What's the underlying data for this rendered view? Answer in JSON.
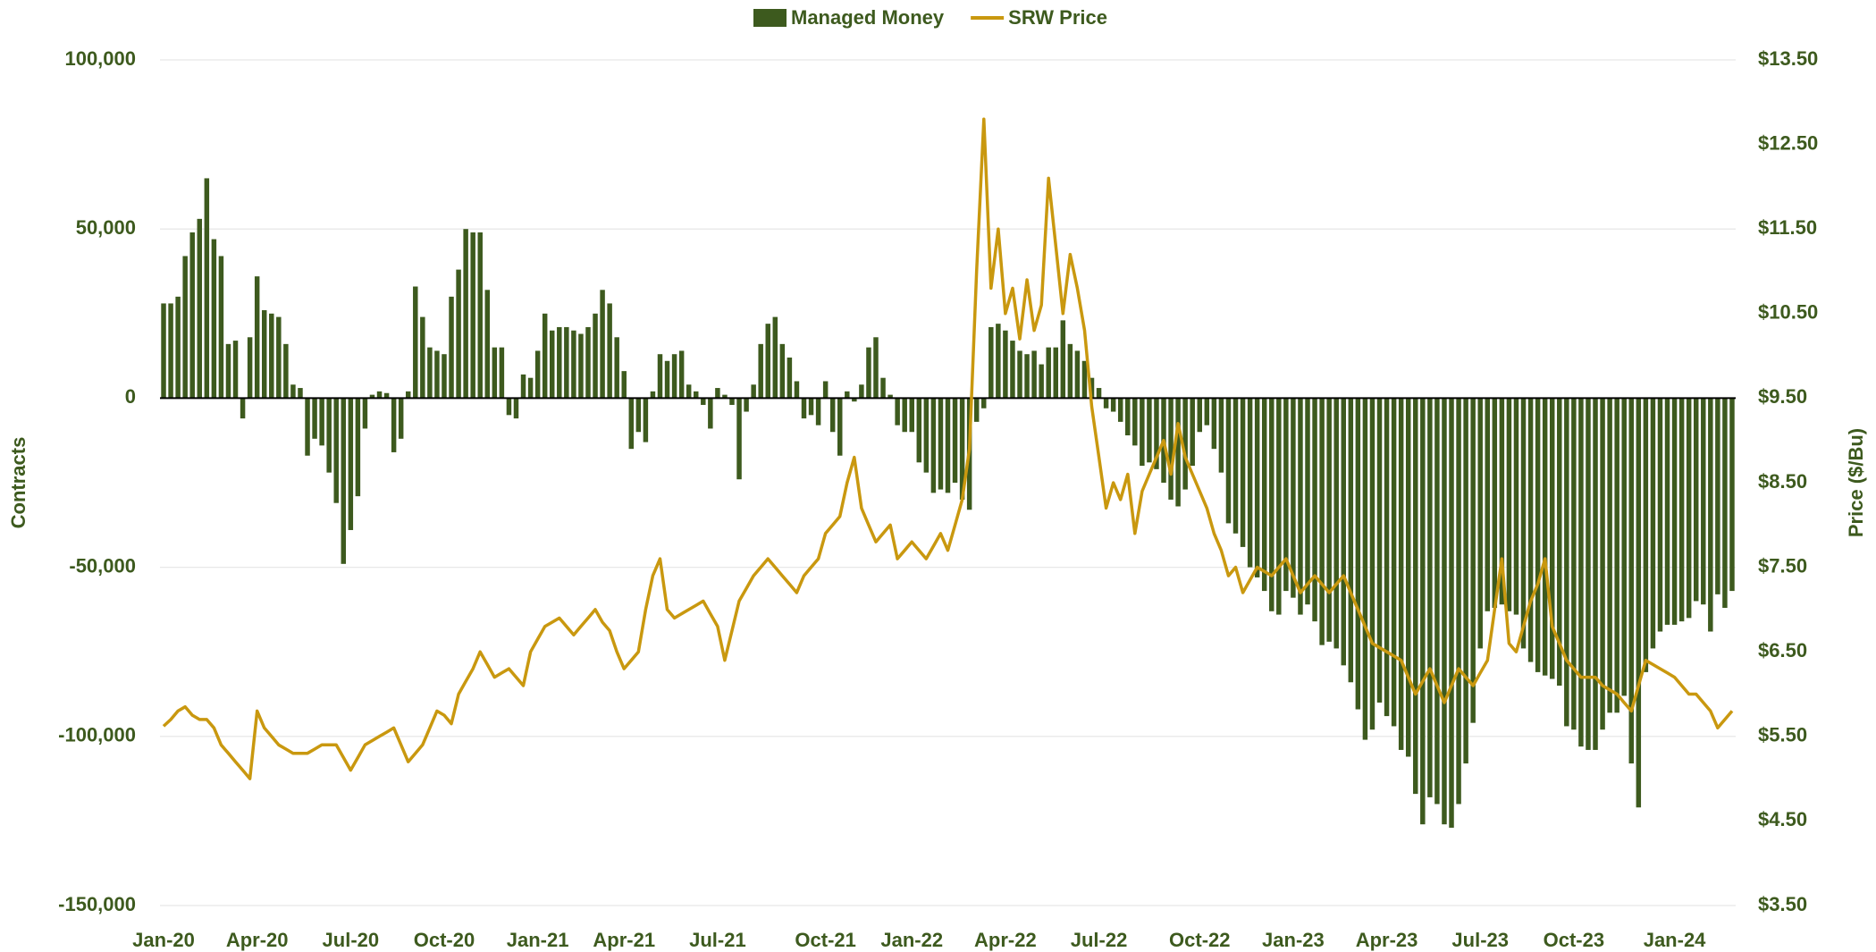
{
  "chart_data": {
    "type": "bar",
    "legend": "top",
    "grid": true,
    "y_label": "Contracts",
    "y2_label": "Price ($/Bu)",
    "categories": [
      "Jan-20",
      null,
      null,
      null,
      null,
      null,
      null,
      null,
      null,
      null,
      null,
      null,
      null,
      "Apr-20",
      null,
      null,
      null,
      null,
      null,
      null,
      null,
      null,
      null,
      null,
      null,
      null,
      "Jul-20",
      null,
      null,
      null,
      null,
      null,
      null,
      null,
      null,
      null,
      null,
      null,
      null,
      "Oct-20",
      null,
      null,
      null,
      null,
      null,
      null,
      null,
      null,
      null,
      null,
      null,
      null,
      "Jan-21",
      null,
      null,
      null,
      null,
      null,
      null,
      null,
      null,
      null,
      null,
      null,
      "Apr-21",
      null,
      null,
      null,
      null,
      null,
      null,
      null,
      null,
      null,
      null,
      null,
      null,
      "Jul-21",
      null,
      null,
      null,
      null,
      null,
      null,
      null,
      null,
      null,
      null,
      null,
      null,
      null,
      null,
      "Oct-21",
      null,
      null,
      null,
      null,
      null,
      null,
      null,
      null,
      null,
      null,
      null,
      "Jan-22",
      null,
      null,
      null,
      null,
      null,
      null,
      null,
      null,
      null,
      null,
      null,
      null,
      "Apr-22",
      null,
      null,
      null,
      null,
      null,
      null,
      null,
      null,
      null,
      null,
      null,
      null,
      "Jul-22",
      null,
      null,
      null,
      null,
      null,
      null,
      null,
      null,
      null,
      null,
      null,
      null,
      null,
      "Oct-22",
      null,
      null,
      null,
      null,
      null,
      null,
      null,
      null,
      null,
      null,
      null,
      null,
      "Jan-23",
      null,
      null,
      null,
      null,
      null,
      null,
      null,
      null,
      null,
      null,
      null,
      null,
      "Apr-23",
      null,
      null,
      null,
      null,
      null,
      null,
      null,
      null,
      null,
      null,
      null,
      null,
      "Jul-23",
      null,
      null,
      null,
      null,
      null,
      null,
      null,
      null,
      null,
      null,
      null,
      null,
      "Oct-23",
      null,
      null,
      null,
      null,
      null,
      null,
      null,
      null,
      null,
      null,
      null,
      null,
      null,
      "Jan-24",
      null,
      null,
      null,
      null,
      null,
      null,
      null,
      null
    ],
    "series": [
      {
        "name": "Managed Money",
        "type": "bar",
        "color": "#3d5a1e",
        "values": [
          28000,
          28000,
          30000,
          42000,
          49000,
          53000,
          65000,
          47000,
          42000,
          16000,
          17000,
          -6000,
          18000,
          36000,
          26000,
          25000,
          24000,
          16000,
          4000,
          3000,
          -17000,
          -12000,
          -14000,
          -22000,
          -31000,
          -49000,
          -39000,
          -29000,
          -9000,
          1000,
          2000,
          1500,
          -16000,
          -12000,
          2000,
          33000,
          24000,
          15000,
          14000,
          13000,
          30000,
          38000,
          50000,
          49000,
          49000,
          32000,
          15000,
          15000,
          -5000,
          -6000,
          7000,
          6000,
          14000,
          25000,
          20000,
          21000,
          21000,
          20000,
          19000,
          21000,
          25000,
          32000,
          28000,
          18000,
          8000,
          -15000,
          -10000,
          -13000,
          2000,
          13000,
          11000,
          13000,
          14000,
          4000,
          2000,
          -2000,
          -9000,
          3000,
          1000,
          -2000,
          -24000,
          -4000,
          4000,
          16000,
          22000,
          24000,
          16000,
          12000,
          5000,
          -6000,
          -5000,
          -8000,
          5000,
          -10000,
          -17000,
          2000,
          -1000,
          4000,
          15000,
          18000,
          6000,
          1000,
          -8000,
          -10000,
          -10000,
          -19000,
          -22000,
          -28000,
          -27000,
          -28000,
          -25000,
          -30000,
          -33000,
          -7000,
          -3000,
          21000,
          22000,
          20000,
          17000,
          14000,
          13000,
          14000,
          10000,
          15000,
          15000,
          23000,
          16000,
          14000,
          11000,
          6000,
          3000,
          -3000,
          -4000,
          -7000,
          -11000,
          -14000,
          -20000,
          -19000,
          -21000,
          -25000,
          -30000,
          -32000,
          -27000,
          -20000,
          -10000,
          -8000,
          -15000,
          -22000,
          -37000,
          -40000,
          -44000,
          -50000,
          -53000,
          -57000,
          -63000,
          -64000,
          -57000,
          -59000,
          -64000,
          -61000,
          -66000,
          -73000,
          -72000,
          -74000,
          -79000,
          -84000,
          -92000,
          -101000,
          -98000,
          -90000,
          -94000,
          -97000,
          -104000,
          -106000,
          -117000,
          -126000,
          -118000,
          -120000,
          -126000,
          -127000,
          -120000,
          -108000,
          -96000,
          -74000,
          -63000,
          -62000,
          -61000,
          -63000,
          -64000,
          -74000,
          -78000,
          -81000,
          -82000,
          -83000,
          -85000,
          -97000,
          -98000,
          -103000,
          -104000,
          -104000,
          -98000,
          -93000,
          -93000,
          -88000,
          -108000,
          -121000,
          -81000,
          -74000,
          -69000,
          -67000,
          -67000,
          -66000,
          -65000,
          -60000,
          -61000,
          -69000,
          -58000,
          -62000,
          -57000
        ]
      },
      {
        "name": "SRW Price",
        "type": "line",
        "axis": "y2",
        "color": "#c9980f",
        "values": [
          5.62,
          5.7,
          5.8,
          5.85,
          5.75,
          5.7,
          5.7,
          5.6,
          5.4,
          5.3,
          5.2,
          5.1,
          5.0,
          5.8,
          5.6,
          5.5,
          5.4,
          5.35,
          5.3,
          5.3,
          5.3,
          5.35,
          5.4,
          5.4,
          5.4,
          5.25,
          5.1,
          5.25,
          5.4,
          5.45,
          5.5,
          5.55,
          5.6,
          5.4,
          5.2,
          5.3,
          5.4,
          5.6,
          5.8,
          5.75,
          5.65,
          6.0,
          6.15,
          6.3,
          6.5,
          6.35,
          6.2,
          6.25,
          6.3,
          6.2,
          6.1,
          6.5,
          6.65,
          6.8,
          6.85,
          6.9,
          6.8,
          6.7,
          6.8,
          6.9,
          7.0,
          6.85,
          6.75,
          6.5,
          6.3,
          6.4,
          6.5,
          7.0,
          7.4,
          7.6,
          7.0,
          6.9,
          6.95,
          7.0,
          7.05,
          7.1,
          6.95,
          6.8,
          6.4,
          6.75,
          7.1,
          7.25,
          7.4,
          7.5,
          7.6,
          7.5,
          7.4,
          7.3,
          7.2,
          7.4,
          7.5,
          7.6,
          7.9,
          8.0,
          8.1,
          8.5,
          8.8,
          8.2,
          8.0,
          7.8,
          7.9,
          8.0,
          7.6,
          7.7,
          7.8,
          7.7,
          7.6,
          7.75,
          7.9,
          7.7,
          8.0,
          8.3,
          8.9,
          11.0,
          12.8,
          10.8,
          11.5,
          10.5,
          10.8,
          10.2,
          10.9,
          10.3,
          10.6,
          12.1,
          11.3,
          10.5,
          11.2,
          10.8,
          10.3,
          9.4,
          8.8,
          8.2,
          8.5,
          8.3,
          8.6,
          7.9,
          8.4,
          8.6,
          8.8,
          9.0,
          8.6,
          9.2,
          8.8,
          8.6,
          8.4,
          8.2,
          7.9,
          7.7,
          7.4,
          7.5,
          7.2,
          7.35,
          7.5,
          7.45,
          7.4,
          7.5,
          7.6,
          7.4,
          7.2,
          7.3,
          7.4,
          7.3,
          7.2,
          7.3,
          7.4,
          7.2,
          7.0,
          6.8,
          6.6,
          6.55,
          6.5,
          6.45,
          6.4,
          6.2,
          6.0,
          6.15,
          6.3,
          6.1,
          5.9,
          6.1,
          6.3,
          6.2,
          6.1,
          6.25,
          6.4,
          7.0,
          7.6,
          6.6,
          6.5,
          6.8,
          7.1,
          7.3,
          7.6,
          6.8,
          6.6,
          6.4,
          6.3,
          6.2,
          6.2,
          6.2,
          6.1,
          6.05,
          6.0,
          5.9,
          5.8,
          6.1,
          6.4,
          6.35,
          6.3,
          6.25,
          6.2,
          6.1,
          6.0,
          6.0,
          5.9,
          5.8,
          5.6,
          5.7,
          5.8
        ]
      }
    ],
    "ylim": [
      -150000,
      100000
    ],
    "yticks": [
      {
        "value": -150000,
        "label": "-150,000"
      },
      {
        "value": -100000,
        "label": "-100,000"
      },
      {
        "value": -50000,
        "label": "-50,000"
      },
      0,
      {
        "value": 50000,
        "label": "50,000"
      },
      {
        "value": 100000,
        "label": "100,000"
      }
    ],
    "y2lim": [
      3.5,
      13.5
    ],
    "y2ticks": [
      {
        "value": 3.5,
        "label": "$3.50"
      },
      {
        "value": 4.5,
        "label": "$4.50"
      },
      {
        "value": 5.5,
        "label": "$5.50"
      },
      {
        "value": 6.5,
        "label": "$6.50"
      },
      {
        "value": 7.5,
        "label": "$7.50"
      },
      {
        "value": 8.5,
        "label": "$8.50"
      },
      {
        "value": 9.5,
        "label": "$9.50"
      },
      {
        "value": 10.5,
        "label": "$10.50"
      },
      {
        "value": 11.5,
        "label": "$11.50"
      },
      {
        "value": 12.5,
        "label": "$12.50"
      },
      {
        "value": 13.5,
        "label": "$13.50"
      }
    ]
  }
}
